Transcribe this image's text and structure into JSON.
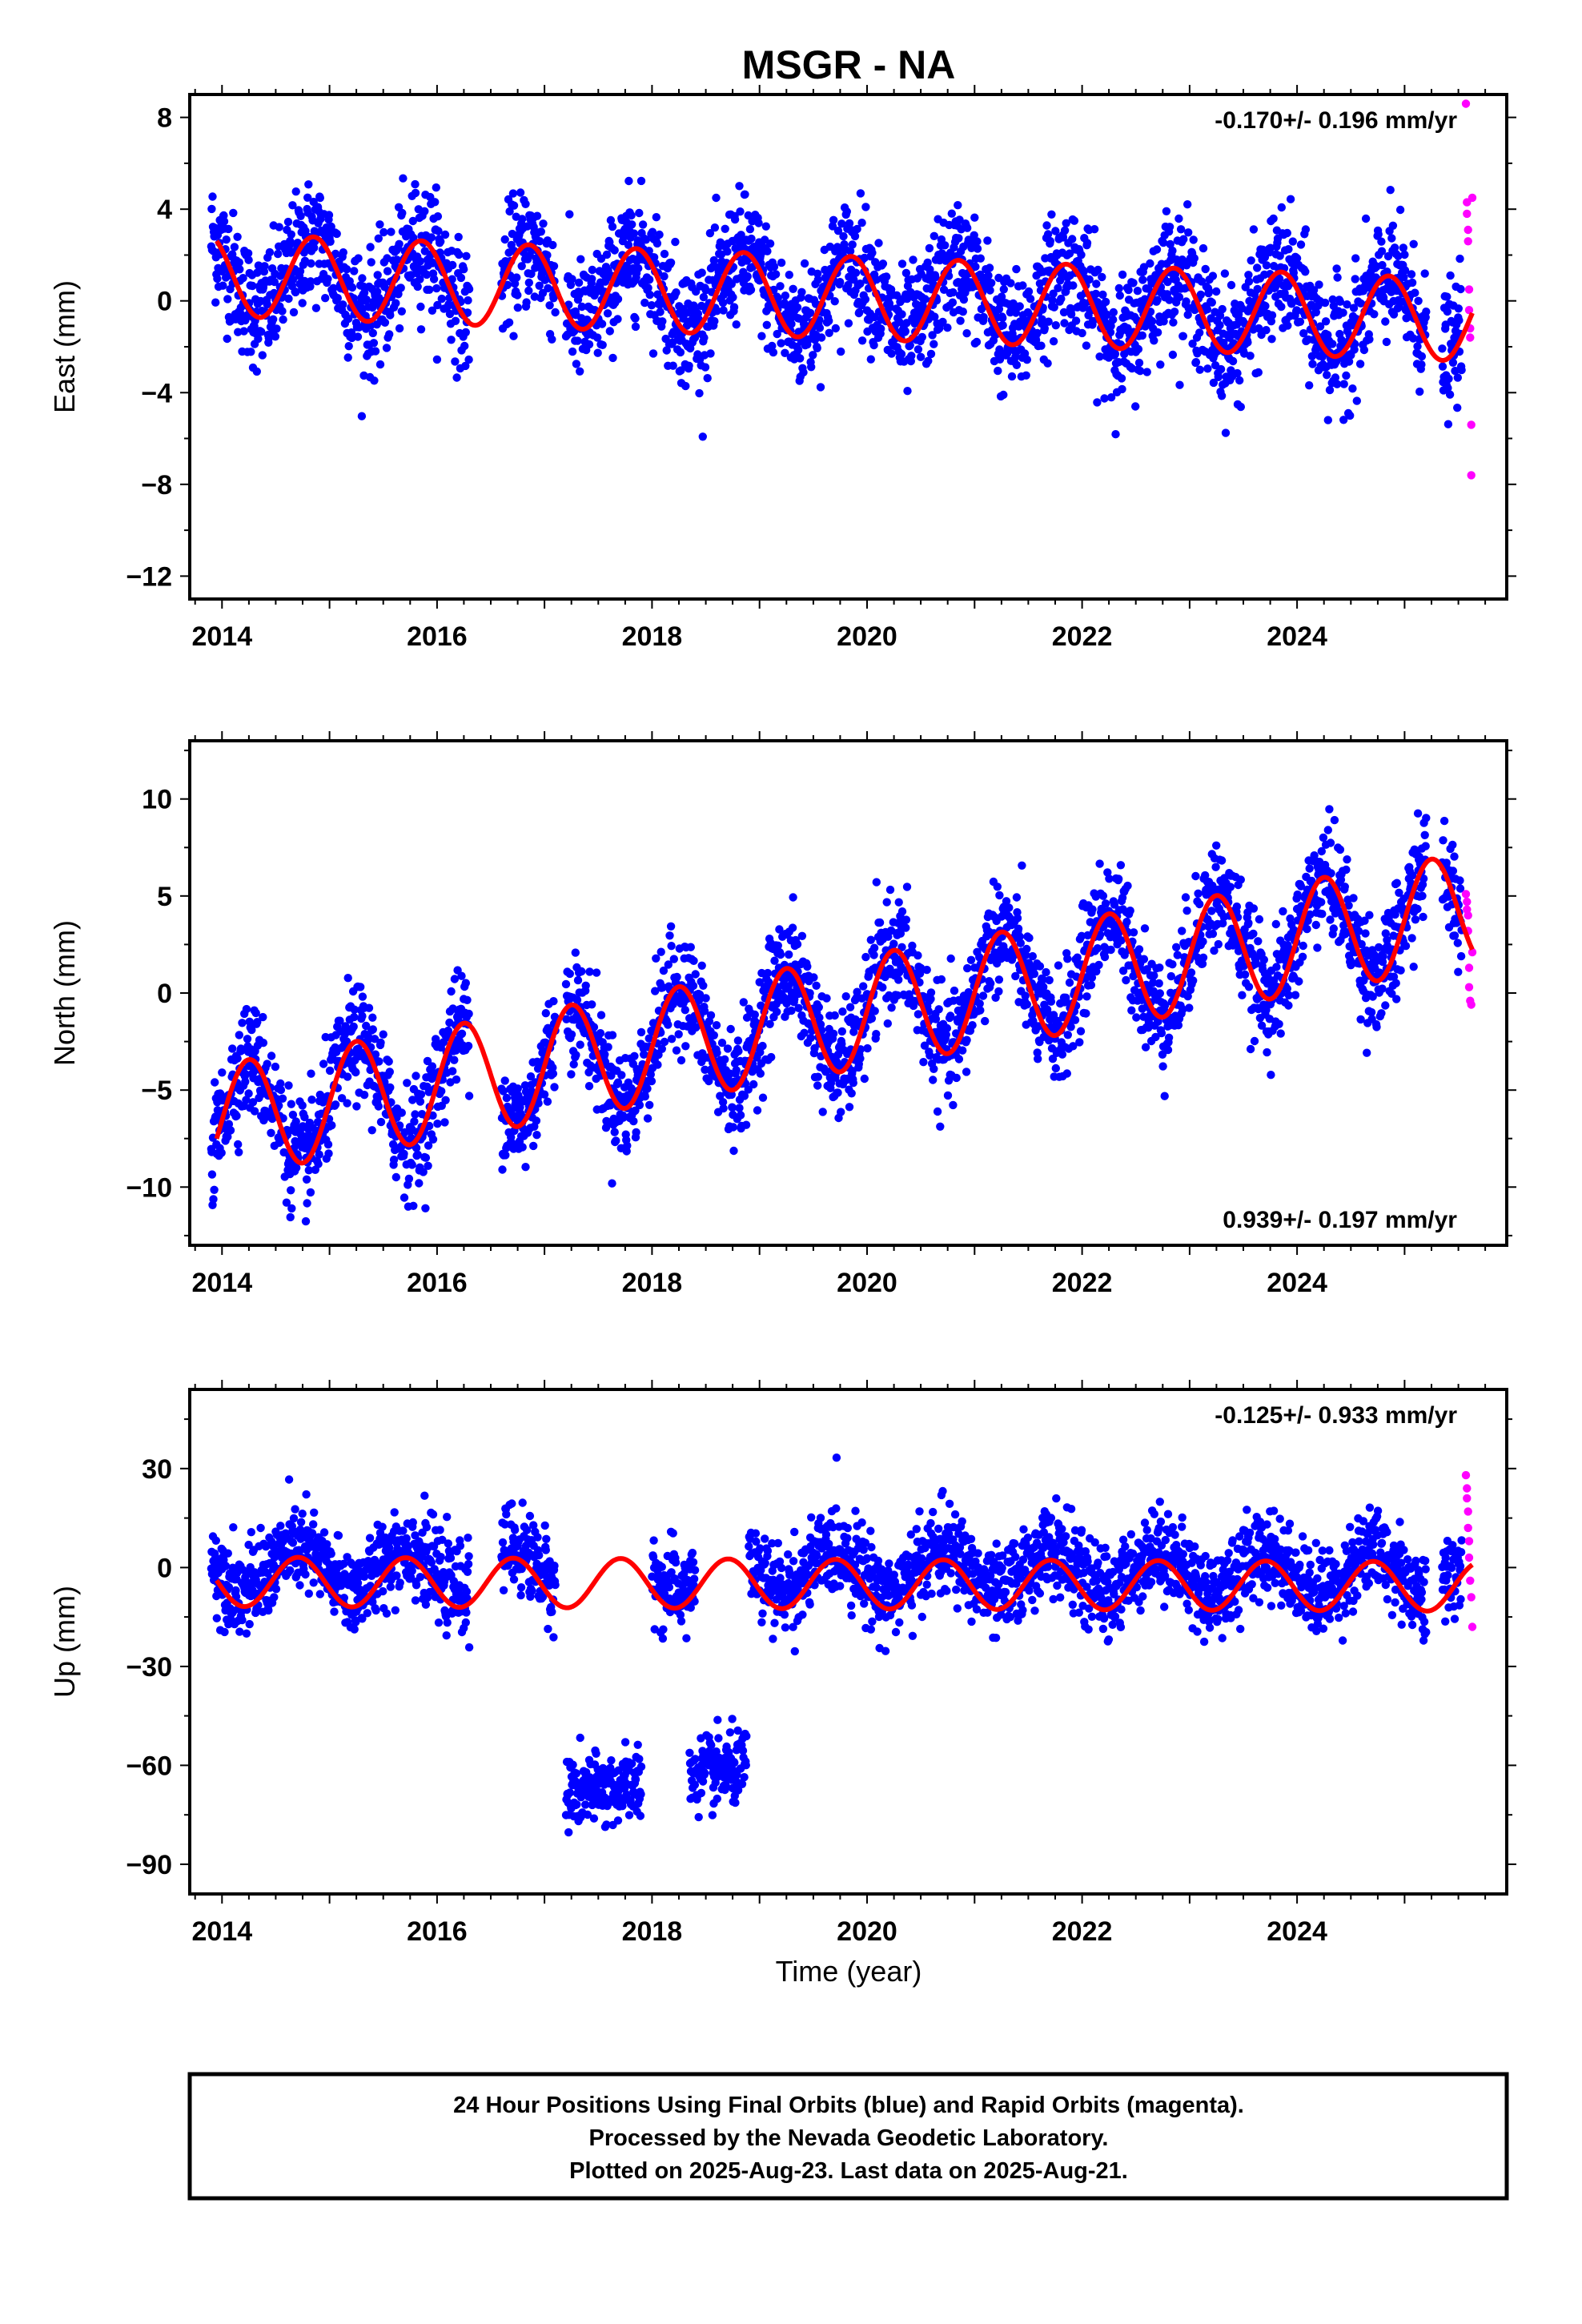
{
  "title": "MSGR - NA",
  "colors": {
    "final": "#0000ff",
    "rapid": "#ff00ff",
    "model": "#ff0000",
    "axis": "#000000"
  },
  "xlabel": "Time (year)",
  "footer": [
    "24 Hour Positions Using Final Orbits (blue) and Rapid Orbits (magenta).",
    "Processed by the Nevada Geodetic Laboratory.",
    "Plotted on 2025-Aug-23. Last data on 2025-Aug-21."
  ],
  "chart_data": [
    {
      "type": "scatter",
      "ylabel": "East (mm)",
      "rate_label": "-0.170+/- 0.196 mm/yr",
      "rate_position": "top-right",
      "xlim": [
        2013.7,
        2025.95
      ],
      "ylim": [
        -13,
        9
      ],
      "xticks": [
        2014,
        2016,
        2018,
        2020,
        2022,
        2024
      ],
      "yticks": [
        -12,
        -8,
        -4,
        0,
        4,
        8
      ],
      "series": [
        {
          "role": "final-orbits",
          "segments": [
            [
              2013.9,
              2016.3
            ],
            [
              2016.6,
              2017.1
            ],
            [
              2017.2,
              2025.2
            ],
            [
              2025.35,
              2025.53
            ]
          ],
          "offset": 0.3,
          "trend": -0.17,
          "amp": 1.6,
          "phase": 2.5,
          "noise": 1.3,
          "ref": 2019.5
        },
        {
          "role": "rapid-orbits",
          "x": [
            2025.57,
            2025.58,
            2025.58,
            2025.59,
            2025.59,
            2025.6,
            2025.6,
            2025.61,
            2025.61,
            2025.62,
            2025.62,
            2025.63
          ],
          "y": [
            8.6,
            4.3,
            3.8,
            3.1,
            2.6,
            0.5,
            -0.4,
            -1.2,
            -1.6,
            -5.4,
            -7.6,
            4.5
          ]
        },
        {
          "role": "model",
          "offset": 0.2,
          "trend": -0.17,
          "amp": 1.8,
          "phase": 2.5,
          "ref": 2019.5,
          "x0": 2013.95,
          "x1": 2025.63
        }
      ]
    },
    {
      "type": "scatter",
      "ylabel": "North (mm)",
      "rate_label": "0.939+/- 0.197 mm/yr",
      "rate_position": "bottom-right",
      "xlim": [
        2013.7,
        2025.95
      ],
      "ylim": [
        -13,
        13
      ],
      "xticks": [
        2014,
        2016,
        2018,
        2020,
        2022,
        2024
      ],
      "yticks": [
        -10,
        -5,
        0,
        5,
        10
      ],
      "series": [
        {
          "role": "final-orbits",
          "segments": [
            [
              2013.9,
              2016.3
            ],
            [
              2016.6,
              2017.1
            ],
            [
              2017.2,
              2025.2
            ],
            [
              2025.35,
              2025.53
            ]
          ],
          "offset": -1.3,
          "trend": 0.939,
          "amp": 2.8,
          "phase": 0.0,
          "noise": 1.4,
          "ref": 2019.5
        },
        {
          "role": "rapid-orbits",
          "x": [
            2025.57,
            2025.58,
            2025.58,
            2025.59,
            2025.59,
            2025.6,
            2025.6,
            2025.61,
            2025.62,
            2025.63
          ],
          "y": [
            5.1,
            4.7,
            4.3,
            4.0,
            3.2,
            1.3,
            0.3,
            -0.4,
            -0.6,
            2.1
          ]
        },
        {
          "role": "model",
          "offset": -1.4,
          "trend": 0.939,
          "amp": 2.9,
          "phase": 0.0,
          "ref": 2019.5,
          "x0": 2013.95,
          "x1": 2025.63
        }
      ]
    },
    {
      "type": "scatter",
      "ylabel": "Up (mm)",
      "rate_label": "-0.125+/- 0.933 mm/yr",
      "rate_position": "top-right",
      "xlim": [
        2013.7,
        2025.95
      ],
      "ylim": [
        -99,
        54
      ],
      "xticks": [
        2014,
        2016,
        2018,
        2020,
        2022,
        2024
      ],
      "yticks": [
        -90,
        -60,
        -30,
        0,
        30
      ],
      "series": [
        {
          "role": "final-orbits",
          "segments": [
            [
              2013.9,
              2016.3
            ],
            [
              2016.6,
              2017.1
            ],
            [
              2018.0,
              2018.4
            ],
            [
              2018.9,
              2025.2
            ],
            [
              2025.35,
              2025.53
            ]
          ],
          "offset": -1.0,
          "trend": -0.125,
          "amp": 6.5,
          "phase": 3.4,
          "noise": 6.5,
          "ref": 2019.5
        },
        {
          "role": "final-orbits-outlier",
          "segments": [
            [
              2017.2,
              2017.9
            ],
            [
              2018.35,
              2018.88
            ]
          ],
          "offset": -67,
          "trend": 5.0,
          "amp": 0,
          "phase": 0,
          "noise": 5.5,
          "ref": 2017.6
        },
        {
          "role": "rapid-orbits",
          "x": [
            2025.57,
            2025.58,
            2025.58,
            2025.59,
            2025.59,
            2025.6,
            2025.6,
            2025.61,
            2025.62,
            2025.63
          ],
          "y": [
            28,
            24,
            21,
            17,
            12,
            8,
            3,
            -4,
            -9,
            -18
          ]
        },
        {
          "role": "model",
          "offset": -5,
          "trend": -0.125,
          "amp": 7.5,
          "phase": 3.4,
          "ref": 2019.5,
          "x0": 2013.95,
          "x1": 2025.63
        }
      ]
    }
  ]
}
